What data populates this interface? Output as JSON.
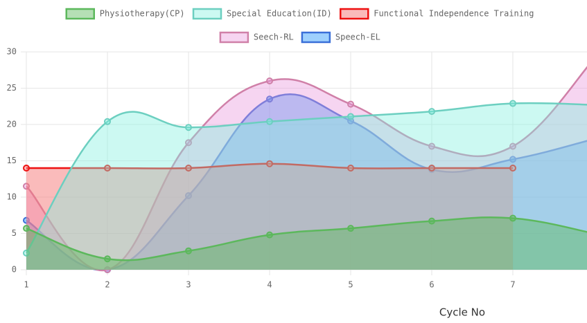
{
  "chart_data": {
    "type": "line",
    "fill": true,
    "smooth": true,
    "x_label": "Cycle No",
    "categories": [
      "1",
      "2",
      "3",
      "4",
      "5",
      "6",
      "7",
      null
    ],
    "ylim": [
      0,
      30
    ],
    "yticks": [
      0,
      5,
      10,
      15,
      20,
      25,
      30
    ],
    "grid": true,
    "series": [
      {
        "name": "Physiotherapy(CP)",
        "color": "#5cb85c",
        "fill": "rgba(92,184,92,0.45)",
        "values": [
          5.7,
          1.5,
          2.6,
          4.8,
          5.7,
          6.7,
          7.1,
          5
        ]
      },
      {
        "name": "Special Education(ID)",
        "color": "#6ccfc0",
        "fill": "rgba(128,239,222,0.4)",
        "values": [
          2.3,
          20.4,
          19.6,
          20.4,
          21.1,
          21.8,
          22.9,
          22.7
        ]
      },
      {
        "name": "Functional Independence Training",
        "color": "#ee1111",
        "fill": "rgba(245,120,120,0.5)",
        "values": [
          14,
          14,
          14,
          14.6,
          14,
          14,
          14,
          null
        ]
      },
      {
        "name": "Seech-RL",
        "color": "#d080a8",
        "fill": "rgba(232,150,220,0.4)",
        "values": [
          11.5,
          0,
          17.5,
          26,
          22.8,
          17,
          17,
          29
        ]
      },
      {
        "name": "Speech-EL",
        "color": "#3a6fd8",
        "fill": "rgba(40,150,250,0.45)",
        "values": [
          6.8,
          0,
          10.2,
          23.5,
          20.5,
          13.8,
          15.2,
          18
        ]
      }
    ]
  }
}
